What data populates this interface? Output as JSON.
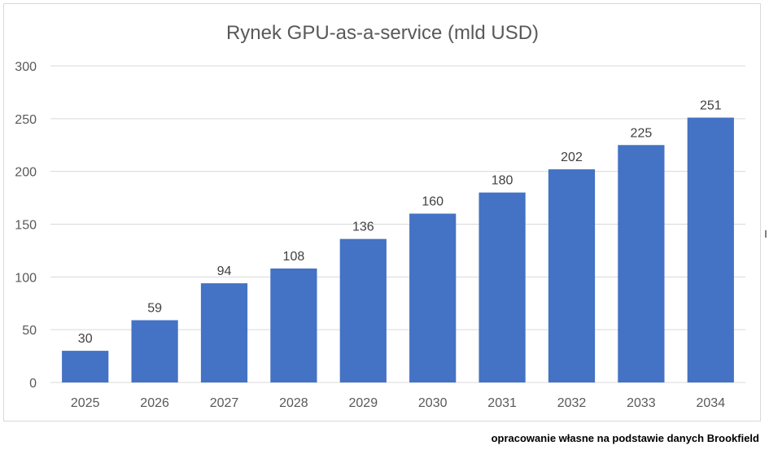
{
  "chart_data": {
    "type": "bar",
    "title": "Rynek GPU-as-a-service (mld USD)",
    "categories": [
      "2025",
      "2026",
      "2027",
      "2028",
      "2029",
      "2030",
      "2031",
      "2032",
      "2033",
      "2034"
    ],
    "values": [
      30,
      59,
      94,
      108,
      136,
      160,
      180,
      202,
      225,
      251
    ],
    "value_labels": [
      "30",
      "59",
      "94",
      "108",
      "136",
      "160",
      "180",
      "202",
      "225",
      "251"
    ],
    "ylim": [
      0,
      300
    ],
    "yticks": [
      "0",
      "50",
      "100",
      "150",
      "200",
      "250",
      "300"
    ],
    "xlabel": "",
    "ylabel": "",
    "grid": true,
    "legend": "none",
    "bar_color": "#4472c4",
    "grid_color": "#d9d9d9"
  },
  "source_note": "opracowanie własne na podstawie danych Brookfield"
}
